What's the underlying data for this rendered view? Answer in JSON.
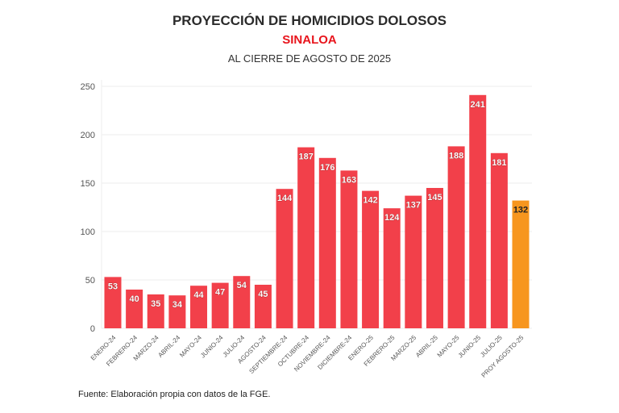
{
  "chart_data": {
    "type": "bar",
    "title": "PROYECCIÓN DE HOMICIDIOS DOLOSOS",
    "subtitle": "SINALOA",
    "subtitle2": "AL CIERRE DE AGOSTO DE 2025",
    "categories": [
      "ENERO-24",
      "FEBRERO-24",
      "MARZO-24",
      "ABRIL-24",
      "MAYO-24",
      "JUNIO-24",
      "JULIO-24",
      "AGOSTO-24",
      "SEPTIEMBRE-24",
      "OCTUBRE-24",
      "NOVIEMBRE-24",
      "DICIEMBRE-24",
      "ENERO-25",
      "FEBRERO-25",
      "MARZO-25",
      "ABRIL-25",
      "MAYO-25",
      "JUNIO-25",
      "JULIO-25",
      "PROY AGOSTO-25"
    ],
    "values": [
      53,
      40,
      35,
      34,
      44,
      47,
      54,
      45,
      144,
      187,
      176,
      163,
      142,
      124,
      137,
      145,
      188,
      241,
      181,
      132
    ],
    "ylim": [
      0,
      250
    ],
    "yticks": [
      0,
      50,
      100,
      150,
      200,
      250
    ],
    "grid": true,
    "xlabel": "",
    "ylabel": "",
    "colors": {
      "actual": "#f2404a",
      "projection": "#f7961e"
    },
    "source": "Fuente: Elaboración propia con datos de la FGE."
  }
}
